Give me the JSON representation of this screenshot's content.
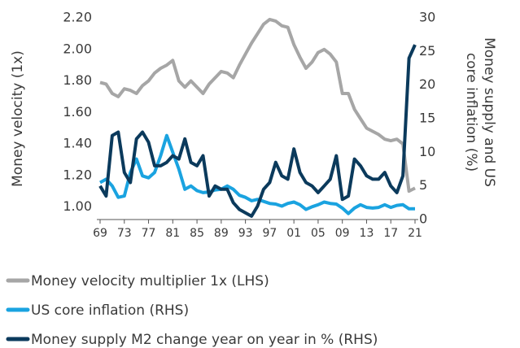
{
  "chart_data": {
    "type": "line",
    "ylabel": "Money velocity (1x)",
    "y2label": [
      "Money supply and US",
      "core inflation (%)"
    ],
    "x": [
      1969,
      1970,
      1971,
      1972,
      1973,
      1974,
      1975,
      1976,
      1977,
      1978,
      1979,
      1980,
      1981,
      1982,
      1983,
      1984,
      1985,
      1986,
      1987,
      1988,
      1989,
      1990,
      1991,
      1992,
      1993,
      1994,
      1995,
      1996,
      1997,
      1998,
      1999,
      2000,
      2001,
      2002,
      2003,
      2004,
      2005,
      2006,
      2007,
      2008,
      2009,
      2010,
      2011,
      2012,
      2013,
      2014,
      2015,
      2016,
      2017,
      2018,
      2019,
      2020,
      2021
    ],
    "series": [
      {
        "name": "Money velocity multiplier 1x (LHS)",
        "color": "#a6a6a6",
        "axis": "y",
        "values": [
          1.79,
          1.78,
          1.72,
          1.7,
          1.75,
          1.74,
          1.72,
          1.77,
          1.8,
          1.85,
          1.88,
          1.9,
          1.93,
          1.8,
          1.76,
          1.8,
          1.76,
          1.72,
          1.78,
          1.82,
          1.86,
          1.85,
          1.82,
          1.9,
          1.97,
          2.04,
          2.1,
          2.16,
          2.19,
          2.18,
          2.15,
          2.14,
          2.03,
          1.95,
          1.88,
          1.92,
          1.98,
          2.0,
          1.97,
          1.92,
          1.72,
          1.72,
          1.62,
          1.56,
          1.5,
          1.48,
          1.46,
          1.43,
          1.42,
          1.43,
          1.4,
          1.1,
          1.12
        ]
      },
      {
        "name": "US core inflation (RHS)",
        "color": "#1aa3e0",
        "axis": "y2",
        "values": [
          5.5,
          6,
          5,
          3.3,
          3.5,
          7,
          9,
          6.5,
          6.2,
          7,
          9.5,
          12.5,
          10,
          7.5,
          4.5,
          5,
          4.3,
          4,
          4.1,
          4.4,
          4.5,
          5,
          4.5,
          3.6,
          3.3,
          2.8,
          3,
          2.7,
          2.4,
          2.3,
          2,
          2.4,
          2.6,
          2.2,
          1.5,
          1.9,
          2.2,
          2.6,
          2.4,
          2.3,
          1.7,
          0.9,
          1.7,
          2.2,
          1.8,
          1.7,
          1.8,
          2.2,
          1.8,
          2.1,
          2.2,
          1.6,
          1.6
        ]
      },
      {
        "name": "Money supply M2 change year on year in % (RHS)",
        "color": "#0b3a5c",
        "axis": "y2",
        "values": [
          5,
          3.5,
          12.5,
          13,
          7,
          5.5,
          12,
          13,
          11.5,
          8,
          8,
          8.5,
          9.5,
          9,
          12,
          8.5,
          8,
          9.5,
          3.5,
          5,
          4.5,
          4.5,
          2.5,
          1.5,
          1,
          0.5,
          2,
          4.5,
          5.5,
          8.5,
          6.5,
          6,
          10.5,
          7,
          5.5,
          5,
          4,
          5,
          6,
          9.5,
          3,
          3.5,
          9,
          8,
          6.5,
          6,
          6,
          7,
          5,
          4,
          6.5,
          24,
          26
        ]
      }
    ],
    "xlim": [
      1969,
      2021
    ],
    "xticks": [
      {
        "value": 1969,
        "label": "69"
      },
      {
        "value": 1973,
        "label": "73"
      },
      {
        "value": 1977,
        "label": "77"
      },
      {
        "value": 1981,
        "label": "81"
      },
      {
        "value": 1985,
        "label": "85"
      },
      {
        "value": 1989,
        "label": "89"
      },
      {
        "value": 1993,
        "label": "93"
      },
      {
        "value": 1997,
        "label": "97"
      },
      {
        "value": 2001,
        "label": "01"
      },
      {
        "value": 2005,
        "label": "05"
      },
      {
        "value": 2009,
        "label": "09"
      },
      {
        "value": 2013,
        "label": "13"
      },
      {
        "value": 2017,
        "label": "17"
      },
      {
        "value": 2021,
        "label": "21"
      }
    ],
    "ylim": [
      0.92,
      2.2
    ],
    "yticks": [
      {
        "value": 1.0,
        "label": "1.00"
      },
      {
        "value": 1.2,
        "label": "1.20"
      },
      {
        "value": 1.4,
        "label": "1.40"
      },
      {
        "value": 1.6,
        "label": "1.60"
      },
      {
        "value": 1.8,
        "label": "1.80"
      },
      {
        "value": 2.0,
        "label": "2.00"
      },
      {
        "value": 2.2,
        "label": "2.20"
      }
    ],
    "y2lim": [
      0,
      30
    ],
    "y2ticks": [
      0,
      5,
      10,
      15,
      20,
      25,
      30
    ]
  }
}
